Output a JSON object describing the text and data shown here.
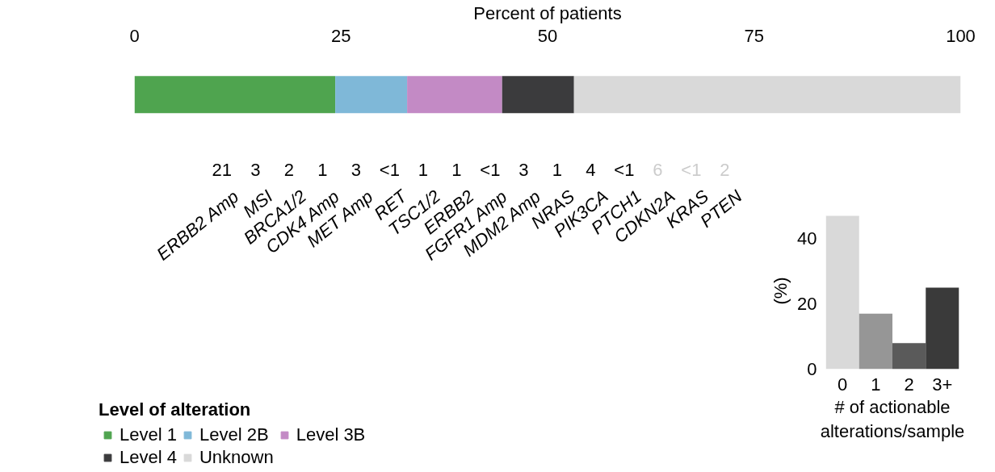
{
  "chart_data": [
    {
      "type": "bar",
      "orientation": "horizontal",
      "stacked": true,
      "xlabel": "Percent of patients",
      "categories": [
        null
      ],
      "xlim": [
        0,
        100
      ],
      "xticks": [
        0,
        25,
        50,
        75,
        100
      ],
      "grid": false,
      "legend": "bottom left",
      "legend_title": "Level of alteration",
      "series": [
        {
          "name": "Level 1",
          "color": "#4fa44f",
          "values": [
            24.3
          ]
        },
        {
          "name": "Level 2B",
          "color": "#7fb8d8",
          "values": [
            8.7
          ]
        },
        {
          "name": "Level 3B",
          "color": "#c38ac5",
          "values": [
            11.5
          ]
        },
        {
          "name": "Level 4",
          "color": "#3b3b3d",
          "values": [
            8.7
          ]
        },
        {
          "name": "Unknown",
          "color": "#d9d9d9",
          "values": [
            46.8
          ]
        }
      ]
    },
    {
      "type": "other",
      "categories": [
        "ERBB2 Amp",
        "MSI",
        "BRCA1/2",
        "CDK4 Amp",
        "MET Amp",
        "RET",
        "TSC1/2",
        "ERBB2",
        "FGFR1 Amp",
        "MDM2 Amp",
        "NRAS",
        "PIK3CA",
        "PTCH1",
        "CDKN2A",
        "KRAS",
        "PTEN"
      ],
      "value_labels": [
        "21",
        "3",
        "2",
        "1",
        "3",
        "<1",
        "1",
        "1",
        "<1",
        "3",
        "1",
        "4",
        "<1",
        "6",
        "<1",
        "2"
      ],
      "colors": [
        "#000000",
        "#000000",
        "#000000",
        "#000000",
        "#000000",
        "#000000",
        "#000000",
        "#000000",
        "#000000",
        "#000000",
        "#000000",
        "#000000",
        "#000000",
        "#cccccc",
        "#cccccc",
        "#cccccc"
      ]
    },
    {
      "type": "bar",
      "categories": [
        "0",
        "1",
        "2",
        "3+"
      ],
      "values": [
        47,
        17,
        8,
        25
      ],
      "colors": [
        "#d9d9d9",
        "#969696",
        "#5a5a5a",
        "#3a3a3a"
      ],
      "ylabel": "(%)",
      "xlabel": "# of actionable\nalterations/sample",
      "ylim": [
        0,
        48
      ],
      "yticks": [
        0,
        20,
        40
      ],
      "grid": false
    }
  ]
}
